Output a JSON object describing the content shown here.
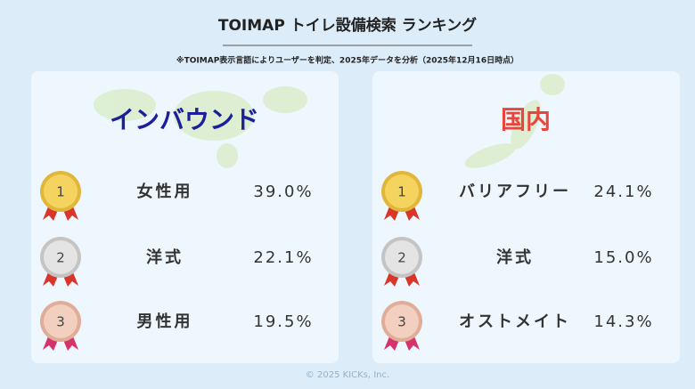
{
  "header": {
    "title": "TOIMAP トイレ設備検索 ランキング",
    "note": "※TOIMAP表示言語によりユーザーを判定、2025年データを分析（2025年12月16日時点）"
  },
  "panels": [
    {
      "title": "インバウンド",
      "items": [
        {
          "rank": "1",
          "label": "女性用",
          "value": "39.0%"
        },
        {
          "rank": "2",
          "label": "洋式",
          "value": "22.1%"
        },
        {
          "rank": "3",
          "label": "男性用",
          "value": "19.5%"
        }
      ]
    },
    {
      "title": "国内",
      "items": [
        {
          "rank": "1",
          "label": "バリアフリー",
          "value": "24.1%"
        },
        {
          "rank": "2",
          "label": "洋式",
          "value": "15.0%"
        },
        {
          "rank": "3",
          "label": "オストメイト",
          "value": "14.3%"
        }
      ]
    }
  ],
  "footer": "© 2025 KICKs, Inc."
}
